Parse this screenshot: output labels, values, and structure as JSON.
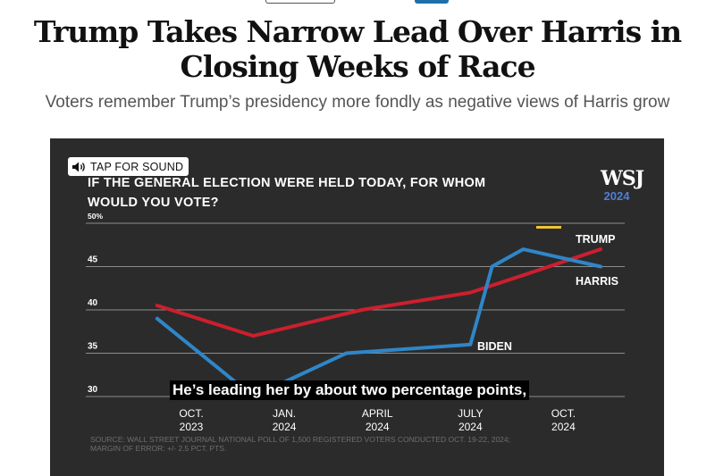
{
  "page": {
    "headline": "Trump Takes Narrow Lead Over Harris in Closing Weeks of Race",
    "subhead": "Voters remember Trump’s presidency more fondly as negative views of Harris grow"
  },
  "video": {
    "sound_button_label": "TAP FOR SOUND",
    "caption": "He’s leading her by about two percentage points,",
    "logo_text": "WSJ",
    "logo_year": "2024",
    "colors": {
      "background": "#2b2b2b",
      "trump": "#cc1f2e",
      "harris": "#2f86c8",
      "marker": "#f2c230"
    }
  },
  "chart_data": {
    "type": "line",
    "title": "IF THE GENERAL ELECTION WERE HELD TODAY, FOR WHOM WOULD YOU VOTE?",
    "ylim": [
      30,
      50
    ],
    "y_ticks": [
      "30",
      "35",
      "40",
      "45",
      "50%"
    ],
    "x_ticks": [
      {
        "line1": "OCT.",
        "line2": "2023",
        "m": 0
      },
      {
        "line1": "JAN.",
        "line2": "2024",
        "m": 3
      },
      {
        "line1": "APRIL",
        "line2": "2024",
        "m": 6
      },
      {
        "line1": "JULY",
        "line2": "2024",
        "m": 9
      },
      {
        "line1": "OCT.",
        "line2": "2024",
        "m": 12
      }
    ],
    "series": [
      {
        "name": "TRUMP",
        "color": "#cc1f2e",
        "points": [
          [
            -1.1,
            40.5
          ],
          [
            2.0,
            37.0
          ],
          [
            5.5,
            40.0
          ],
          [
            9.0,
            42.0
          ],
          [
            10.7,
            44.0
          ],
          [
            13.2,
            47.0
          ]
        ]
      },
      {
        "name": "HARRIS",
        "color": "#2f86c8",
        "points": [
          [
            9.7,
            45.0
          ],
          [
            10.7,
            47.0
          ],
          [
            13.2,
            45.0
          ]
        ]
      },
      {
        "name": "BIDEN",
        "color": "#2f86c8",
        "points": [
          [
            -1.1,
            39.0
          ],
          [
            2.0,
            30.0
          ],
          [
            5.0,
            35.0
          ],
          [
            9.0,
            36.0
          ],
          [
            9.7,
            45.0
          ]
        ]
      }
    ],
    "source": "SOURCE: WALL STREET JOURNAL NATIONAL POLL OF 1,500 REGISTERED VOTERS CONDUCTED OCT. 19-22, 2024; MARGIN OF ERROR: +/- 2.5 PCT. PTS."
  }
}
